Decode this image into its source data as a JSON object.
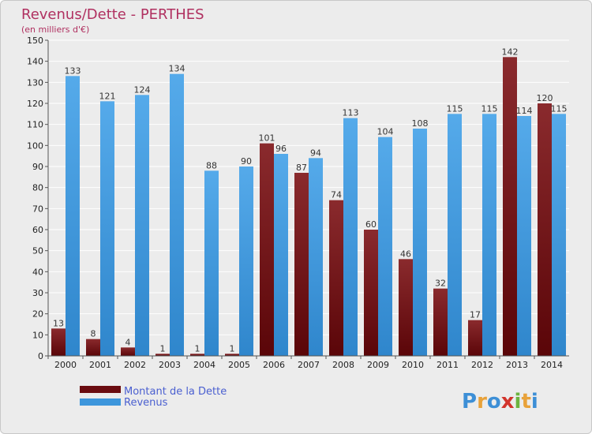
{
  "chart_data": {
    "type": "bar",
    "title": "Revenus/Dette - PERTHES",
    "subtitle": "(en milliers d'€)",
    "categories": [
      "2000",
      "2001",
      "2002",
      "2003",
      "2004",
      "2005",
      "2006",
      "2007",
      "2008",
      "2009",
      "2010",
      "2011",
      "2012",
      "2013",
      "2014"
    ],
    "series": [
      {
        "name": "Montant de la Dette",
        "color": "#7a1518",
        "values": [
          13,
          8,
          4,
          1,
          1,
          1,
          101,
          87,
          74,
          60,
          46,
          32,
          17,
          142,
          120
        ]
      },
      {
        "name": "Revenus",
        "color": "#3d96dc",
        "values": [
          133,
          121,
          124,
          134,
          88,
          90,
          96,
          94,
          113,
          104,
          108,
          115,
          115,
          114,
          115
        ]
      }
    ],
    "ylim": [
      0,
      150
    ],
    "yticks": [
      0,
      10,
      20,
      30,
      40,
      50,
      60,
      70,
      80,
      90,
      100,
      110,
      120,
      130,
      140,
      150
    ],
    "grid": true,
    "legend_position": "bottom-left"
  },
  "logo": {
    "letters": [
      "P",
      "r",
      "o",
      "x",
      "i",
      "t",
      "i"
    ],
    "colors": [
      "#3d8fd6",
      "#e8a23a",
      "#3d8fd6",
      "#d2342c",
      "#6cb33f",
      "#e8a23a",
      "#3d8fd6"
    ]
  }
}
